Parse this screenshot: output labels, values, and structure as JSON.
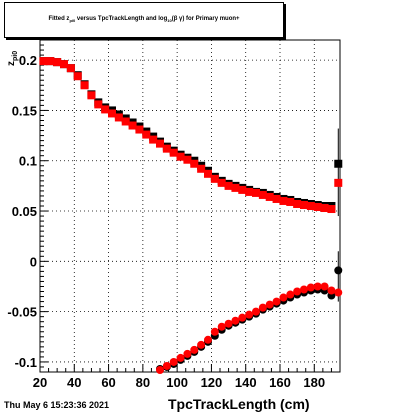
{
  "title": {
    "pre": "Fitted z",
    "pre_sub": "pi0",
    "mid": " versus TpcTrackLength and log",
    "mid_sub": "10",
    "post": "(β γ) for Primary muon+"
  },
  "timestamp": "Thu May  6 15:23:36 2021",
  "chart_data": {
    "type": "scatter",
    "title": "Fitted z_pi0 versus TpcTrackLength and log10(βγ) for Primary muon+",
    "xlabel": "TpcTrackLength (cm)",
    "ylabel_main": "z",
    "ylabel_sub": "pi0",
    "xlim": [
      20,
      195
    ],
    "ylim": [
      -0.11,
      0.22
    ],
    "grid": true,
    "x_ticks": [
      20,
      40,
      60,
      80,
      100,
      120,
      140,
      160,
      180
    ],
    "y_ticks": [
      -0.1,
      -0.05,
      0,
      0.05,
      0.1,
      0.15,
      0.2
    ],
    "y_tick_labels": [
      "-0.1",
      "-0.05",
      "0",
      "0.05",
      "0.1",
      "0.15",
      "0.2"
    ],
    "series": [
      {
        "marker": "square",
        "color": "#000000",
        "points": [
          [
            22,
            0.199
          ],
          [
            26,
            0.199
          ],
          [
            30,
            0.198
          ],
          [
            34,
            0.196
          ],
          [
            38,
            0.192
          ],
          [
            42,
            0.185
          ],
          [
            46,
            0.176
          ],
          [
            50,
            0.166
          ],
          [
            54,
            0.158
          ],
          [
            58,
            0.153
          ],
          [
            62,
            0.15
          ],
          [
            66,
            0.146
          ],
          [
            70,
            0.142
          ],
          [
            74,
            0.138
          ],
          [
            78,
            0.134
          ],
          [
            82,
            0.129
          ],
          [
            86,
            0.124
          ],
          [
            90,
            0.119
          ],
          [
            94,
            0.114
          ],
          [
            98,
            0.11
          ],
          [
            102,
            0.106
          ],
          [
            106,
            0.103
          ],
          [
            110,
            0.1
          ],
          [
            114,
            0.095
          ],
          [
            118,
            0.09
          ],
          [
            122,
            0.084
          ],
          [
            126,
            0.08
          ],
          [
            130,
            0.077
          ],
          [
            134,
            0.075
          ],
          [
            138,
            0.073
          ],
          [
            142,
            0.071
          ],
          [
            146,
            0.069
          ],
          [
            150,
            0.068
          ],
          [
            154,
            0.066
          ],
          [
            158,
            0.064
          ],
          [
            162,
            0.062
          ],
          [
            166,
            0.061
          ],
          [
            170,
            0.059
          ],
          [
            174,
            0.058
          ],
          [
            178,
            0.057
          ],
          [
            182,
            0.056
          ],
          [
            186,
            0.055
          ],
          [
            190,
            0.055
          ],
          [
            194,
            0.097
          ]
        ]
      },
      {
        "marker": "square",
        "color": "#ff0000",
        "points": [
          [
            22,
            0.199
          ],
          [
            26,
            0.199
          ],
          [
            30,
            0.198
          ],
          [
            34,
            0.196
          ],
          [
            38,
            0.192
          ],
          [
            42,
            0.184
          ],
          [
            46,
            0.175
          ],
          [
            50,
            0.165
          ],
          [
            54,
            0.156
          ],
          [
            58,
            0.151
          ],
          [
            62,
            0.147
          ],
          [
            66,
            0.143
          ],
          [
            70,
            0.139
          ],
          [
            74,
            0.135
          ],
          [
            78,
            0.131
          ],
          [
            82,
            0.126
          ],
          [
            86,
            0.121
          ],
          [
            90,
            0.117
          ],
          [
            94,
            0.112
          ],
          [
            98,
            0.108
          ],
          [
            102,
            0.104
          ],
          [
            106,
            0.101
          ],
          [
            110,
            0.097
          ],
          [
            114,
            0.092
          ],
          [
            118,
            0.087
          ],
          [
            122,
            0.082
          ],
          [
            126,
            0.078
          ],
          [
            130,
            0.075
          ],
          [
            134,
            0.073
          ],
          [
            138,
            0.071
          ],
          [
            142,
            0.069
          ],
          [
            146,
            0.068
          ],
          [
            150,
            0.066
          ],
          [
            154,
            0.064
          ],
          [
            158,
            0.062
          ],
          [
            162,
            0.06
          ],
          [
            166,
            0.059
          ],
          [
            170,
            0.057
          ],
          [
            174,
            0.056
          ],
          [
            178,
            0.055
          ],
          [
            182,
            0.054
          ],
          [
            186,
            0.053
          ],
          [
            190,
            0.052
          ],
          [
            194,
            0.078
          ]
        ]
      },
      {
        "marker": "circle",
        "color": "#000000",
        "points": [
          [
            90,
            -0.107
          ],
          [
            94,
            -0.105
          ],
          [
            98,
            -0.102
          ],
          [
            102,
            -0.098
          ],
          [
            106,
            -0.094
          ],
          [
            110,
            -0.09
          ],
          [
            114,
            -0.085
          ],
          [
            118,
            -0.08
          ],
          [
            122,
            -0.074
          ],
          [
            126,
            -0.068
          ],
          [
            130,
            -0.064
          ],
          [
            134,
            -0.061
          ],
          [
            138,
            -0.058
          ],
          [
            142,
            -0.055
          ],
          [
            146,
            -0.052
          ],
          [
            150,
            -0.048
          ],
          [
            154,
            -0.045
          ],
          [
            158,
            -0.042
          ],
          [
            162,
            -0.039
          ],
          [
            166,
            -0.036
          ],
          [
            170,
            -0.033
          ],
          [
            174,
            -0.031
          ],
          [
            178,
            -0.029
          ],
          [
            182,
            -0.028
          ],
          [
            186,
            -0.029
          ],
          [
            190,
            -0.034
          ],
          [
            194,
            -0.009
          ]
        ]
      },
      {
        "marker": "circle",
        "color": "#ff0000",
        "points": [
          [
            90,
            -0.108
          ],
          [
            94,
            -0.104
          ],
          [
            98,
            -0.1
          ],
          [
            102,
            -0.096
          ],
          [
            106,
            -0.092
          ],
          [
            110,
            -0.088
          ],
          [
            114,
            -0.083
          ],
          [
            118,
            -0.078
          ],
          [
            122,
            -0.07
          ],
          [
            126,
            -0.065
          ],
          [
            130,
            -0.062
          ],
          [
            134,
            -0.059
          ],
          [
            138,
            -0.056
          ],
          [
            142,
            -0.053
          ],
          [
            146,
            -0.05
          ],
          [
            150,
            -0.046
          ],
          [
            154,
            -0.043
          ],
          [
            158,
            -0.04
          ],
          [
            162,
            -0.036
          ],
          [
            166,
            -0.033
          ],
          [
            170,
            -0.03
          ],
          [
            174,
            -0.028
          ],
          [
            178,
            -0.026
          ],
          [
            182,
            -0.025
          ],
          [
            186,
            -0.025
          ],
          [
            190,
            -0.029
          ],
          [
            194,
            -0.031
          ]
        ]
      }
    ],
    "error_bars": [
      {
        "x": 194,
        "y_low": 0.045,
        "y_high": 0.132,
        "color": "#000000"
      },
      {
        "x": 194,
        "y_low": -0.04,
        "y_high": 0.01,
        "color": "#000000"
      }
    ]
  }
}
